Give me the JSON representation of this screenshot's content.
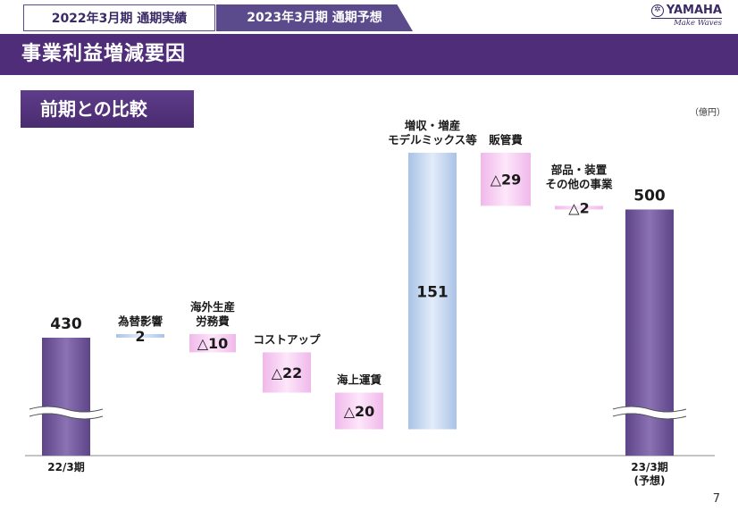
{
  "header": {
    "tab_active": "2022年3月期 通期実績",
    "tab_inactive": "2023年3月期 通期予想",
    "logo_text": "YAMAHA",
    "logo_tagline": "Make Waves",
    "title": "事業利益増減要因"
  },
  "section": {
    "title": "前期との比較",
    "unit": "（億円）"
  },
  "page_number": "7",
  "colors": {
    "total_bar": "#7b5fa3",
    "increase_bar": "#b7cfee",
    "decrease_box": "#f3c8ee",
    "header_bg": "#4f2d78",
    "tab_bg": "#5b4a8c"
  },
  "chart_data": {
    "type": "bar",
    "subtype": "waterfall",
    "axis_break": true,
    "items": [
      {
        "label": [
          "22/3期"
        ],
        "label_position": "below",
        "value": 430,
        "display": "430",
        "kind": "total"
      },
      {
        "label": [
          "為替影響"
        ],
        "label_position": "above",
        "value": 2,
        "display": "2",
        "kind": "increase"
      },
      {
        "label": [
          "海外生産",
          "労務費"
        ],
        "label_position": "above",
        "value": -10,
        "display": "△10",
        "kind": "decrease"
      },
      {
        "label": [
          "コストアップ"
        ],
        "label_position": "above",
        "value": -22,
        "display": "△22",
        "kind": "decrease"
      },
      {
        "label": [
          "海上運賃"
        ],
        "label_position": "above",
        "value": -20,
        "display": "△20",
        "kind": "decrease"
      },
      {
        "label": [
          "増収・増産",
          "モデルミックス等"
        ],
        "label_position": "above",
        "value": 151,
        "display": "151",
        "kind": "increase"
      },
      {
        "label": [
          "販管費"
        ],
        "label_position": "above",
        "value": -29,
        "display": "△29",
        "kind": "decrease"
      },
      {
        "label": [
          "部品・装置",
          "その他の事業"
        ],
        "label_position": "above",
        "value": -2,
        "display": "△2",
        "kind": "decrease"
      },
      {
        "label": [
          "23/3期",
          "(予想)"
        ],
        "label_position": "below",
        "value": 500,
        "display": "500",
        "kind": "total"
      }
    ]
  }
}
